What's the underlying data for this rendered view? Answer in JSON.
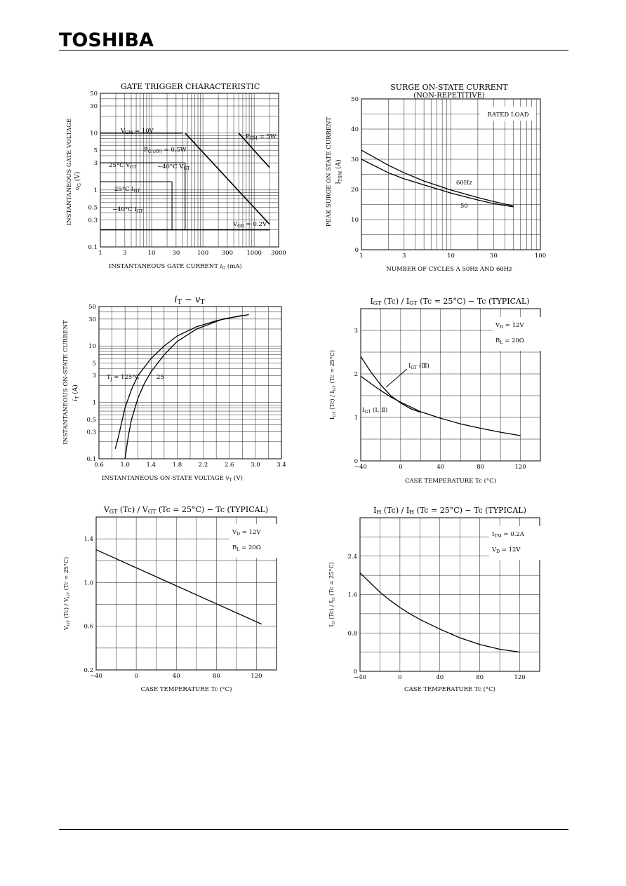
{
  "brand": "TOSHIBA",
  "chart_data": [
    {
      "id": "gate-trigger",
      "type": "line",
      "title": "GATE TRIGGER CHARACTERISTIC",
      "xlabel": "INSTANTANEOUS GATE CURRENT",
      "xsymbol": "i",
      "xsub": "G",
      "xunit": "(mA)",
      "ylabel": "INSTANTANEOUS GATE VOLTAGE",
      "ysymbol": "v",
      "ysub": "G",
      "yunit": "(V)",
      "xscale": "log",
      "yscale": "log",
      "xlim": [
        1,
        3000
      ],
      "ylim": [
        0.1,
        50
      ],
      "xticks": [
        1,
        3,
        10,
        30,
        100,
        300,
        1000,
        3000
      ],
      "xticklabels": [
        "1",
        "3",
        "10",
        "30",
        "100",
        "300",
        "1000",
        "3000"
      ],
      "yticks": [
        0.1,
        0.3,
        0.5,
        1,
        3,
        5,
        10,
        30,
        50
      ],
      "yticklabels": [
        "0.1",
        "0.3",
        "0.5",
        "1",
        "3",
        "5",
        "10",
        "30",
        "50"
      ],
      "series": [
        {
          "label": "VGM=10V",
          "x": [
            1,
            40
          ],
          "y": [
            10,
            10
          ]
        },
        {
          "label": "PGM=5W",
          "x": [
            500,
            1300,
            2000
          ],
          "y": [
            10,
            3.8,
            2.5
          ]
        },
        {
          "label": "PG(AV)=0.5W",
          "x": [
            45,
            2000
          ],
          "y": [
            10,
            0.25
          ]
        },
        {
          "label": "VGD=0.2V",
          "x": [
            1,
            2000
          ],
          "y": [
            0.2,
            0.2
          ]
        },
        {
          "label": "-40°C VGT",
          "x": [
            1,
            45
          ],
          "y": [
            3,
            3
          ]
        },
        {
          "label": "25°C VGT",
          "x": [
            1,
            25
          ],
          "y": [
            1.4,
            1.4
          ]
        },
        {
          "label": "25°C IGT",
          "x": [
            25,
            25
          ],
          "y": [
            0.2,
            1.4
          ]
        },
        {
          "label": "-40°C IGT",
          "x": [
            45,
            45
          ],
          "y": [
            0.2,
            3
          ]
        }
      ],
      "annotations": [
        {
          "text": "V",
          "sub": "GM",
          "after": " = 10V"
        },
        {
          "text": "P",
          "sub": "GM",
          "after": " = 5W"
        },
        {
          "text": "P",
          "sub": "G (AV)",
          "after": " = 0.5W"
        },
        {
          "text": "25°C  V",
          "sub": "GT",
          "after": ""
        },
        {
          "text": "−40°C  V",
          "sub": "GT",
          "after": ""
        },
        {
          "text": "25°C  I",
          "sub": "GT",
          "after": ""
        },
        {
          "text": "−40°C  I",
          "sub": "GT",
          "after": ""
        },
        {
          "text": "V",
          "sub": "GD",
          "after": " = 0.2V"
        }
      ]
    },
    {
      "id": "surge",
      "type": "line",
      "title": "SURGE ON-STATE CURRENT",
      "subtitle": "(NON-REPETITIVE)",
      "xlabel": "NUMBER OF CYCLES A 50Hz AND 60Hz",
      "ylabel": "PEAK SURGE ON STATE CURRENT",
      "ysymbol": "I",
      "ysub": "TSM",
      "yunit": "(A)",
      "xscale": "log",
      "xlim": [
        1,
        100
      ],
      "ylim": [
        0,
        50
      ],
      "xticks": [
        1,
        3,
        10,
        30,
        100
      ],
      "xticklabels": [
        "1",
        "3",
        "10",
        "30",
        "100"
      ],
      "yticks": [
        0,
        10,
        20,
        30,
        40,
        50
      ],
      "yticklabels": [
        "0",
        "10",
        "20",
        "30",
        "40",
        "50"
      ],
      "note": "RATED LOAD",
      "series": [
        {
          "name": "60Hz",
          "x": [
            1,
            2,
            3,
            5,
            10,
            20,
            30,
            50
          ],
          "y": [
            33,
            28,
            25.5,
            22.8,
            19.8,
            17.3,
            16,
            14.5
          ]
        },
        {
          "name": "50",
          "x": [
            1,
            2,
            3,
            5,
            10,
            20,
            30,
            50
          ],
          "y": [
            30,
            25.5,
            23.5,
            21.5,
            18.8,
            16.5,
            15.3,
            14.2
          ]
        }
      ]
    },
    {
      "id": "it-vt",
      "type": "line",
      "title": "i",
      "titlesub": "T",
      "titlemid": " − v",
      "titlesub2": "T",
      "xlabel": "INSTANTANEOUS ON-STATE VOLTAGE",
      "xsymbol": "v",
      "xsub": "T",
      "xunit": "(V)",
      "ylabel": "INSTANTANEOUS ON-STATE CURRENT",
      "ysymbol": "i",
      "ysub": "T",
      "yunit": "(A)",
      "yscale": "log",
      "xlim": [
        0.6,
        3.4
      ],
      "ylim": [
        0.1,
        50
      ],
      "xticks": [
        0.6,
        1.0,
        1.4,
        1.8,
        2.2,
        2.6,
        3.0,
        3.4
      ],
      "xticklabels": [
        "0.6",
        "1.0",
        "1.4",
        "1.8",
        "2.2",
        "2.6",
        "3.0",
        "3.4"
      ],
      "yticks": [
        0.1,
        0.3,
        0.5,
        1,
        3,
        5,
        10,
        30,
        50
      ],
      "yticklabels": [
        "0.1",
        "0.3",
        "0.5",
        "1",
        "3",
        "5",
        "10",
        "30",
        "50"
      ],
      "series": [
        {
          "name": "Tj = 125°C",
          "x": [
            0.85,
            0.9,
            0.95,
            1.0,
            1.1,
            1.2,
            1.4,
            1.6,
            1.8,
            2.1,
            2.4,
            2.8
          ],
          "y": [
            0.15,
            0.25,
            0.45,
            0.8,
            1.7,
            3.0,
            6.0,
            10,
            15,
            22,
            28,
            35
          ]
        },
        {
          "name": "25",
          "x": [
            1.0,
            1.05,
            1.1,
            1.2,
            1.3,
            1.4,
            1.6,
            1.8,
            2.1,
            2.5,
            2.9
          ],
          "y": [
            0.1,
            0.25,
            0.5,
            1.2,
            2.2,
            3.5,
            7.0,
            12,
            20,
            30,
            36
          ]
        }
      ],
      "annotations": [
        {
          "text": "T",
          "sub": "j",
          "after": " = 125°C"
        },
        {
          "text": "25",
          "sub": "",
          "after": ""
        }
      ]
    },
    {
      "id": "igt-tc",
      "type": "line",
      "title": "I",
      "titlesub": "GT",
      "titlemid": " (Tc) / I",
      "titlesub2": "GT",
      "titletail": " (Tc = 25°C)  −  Tc  (TYPICAL)",
      "xlabel": "CASE TEMPERATURE   Tc   (°C)",
      "ylabel": "I",
      "ylabelsub": "GT",
      "ylabeltail": " (Tc) / I",
      "ylabelsub2": "GT",
      "ylabelend": " (Tc = 25°C)",
      "xlim": [
        -40,
        140
      ],
      "ylim": [
        0,
        3.5
      ],
      "xticks": [
        -40,
        0,
        40,
        80,
        120
      ],
      "xticklabels": [
        "−40",
        "0",
        "40",
        "80",
        "120"
      ],
      "yticks": [
        0,
        1,
        2,
        3
      ],
      "yticklabels": [
        "0",
        "1",
        "2",
        "3"
      ],
      "conditions": [
        {
          "text": "V",
          "sub": "D",
          "after": " = 12V"
        },
        {
          "text": "R",
          "sub": "L",
          "after": " = 20Ω"
        }
      ],
      "series": [
        {
          "name": "IGT (Ⅲ)",
          "x": [
            -40,
            -30,
            -20,
            -10,
            0,
            10,
            20
          ],
          "y": [
            2.4,
            2.05,
            1.75,
            1.5,
            1.33,
            1.2,
            1.12
          ]
        },
        {
          "name": "IGT (Ⅰ, Ⅱ)",
          "x": [
            -40,
            -30,
            -20,
            -10,
            0,
            10,
            20,
            40,
            60,
            80,
            100,
            120
          ],
          "y": [
            1.95,
            1.78,
            1.62,
            1.47,
            1.35,
            1.24,
            1.13,
            0.98,
            0.85,
            0.75,
            0.66,
            0.58
          ]
        }
      ],
      "annotations": [
        {
          "text": "I",
          "sub": "GT",
          "after": " (Ⅲ)"
        },
        {
          "text": "I",
          "sub": "GT",
          "after": " (Ⅰ, Ⅱ)"
        }
      ]
    },
    {
      "id": "vgt-tc",
      "type": "line",
      "title": "V",
      "titlesub": "GT",
      "titlemid": " (Tc) / V",
      "titlesub2": "GT",
      "titletail": " (Tc = 25°C)  −  Tc (TYPICAL)",
      "xlabel": "CASE TEMPERATURE   Tc   (°C)",
      "ylabel": "V",
      "ylabelsub": "GT",
      "ylabeltail": " (Tc) / V",
      "ylabelsub2": "GT",
      "ylabelend": " (Tc = 25°C)",
      "xlim": [
        -40,
        140
      ],
      "ylim": [
        0.2,
        1.6
      ],
      "xticks": [
        -40,
        0,
        40,
        80,
        120
      ],
      "xticklabels": [
        "−40",
        "0",
        "40",
        "80",
        "120"
      ],
      "yticks": [
        0.2,
        0.6,
        1.0,
        1.4
      ],
      "yticklabels": [
        "0.2",
        "0.6",
        "1.0",
        "1.4"
      ],
      "conditions": [
        {
          "text": "V",
          "sub": "D",
          "after": " = 12V"
        },
        {
          "text": "R",
          "sub": "L",
          "after": " = 20Ω"
        }
      ],
      "series": [
        {
          "x": [
            -40,
            125
          ],
          "y": [
            1.3,
            0.62
          ]
        }
      ]
    },
    {
      "id": "ih-tc",
      "type": "line",
      "title": "I",
      "titlesub": "H",
      "titlemid": " (Tc) / I",
      "titlesub2": "H",
      "titletail": " (Tc = 25°C)  −  Tc     (TYPICAL)",
      "xlabel": "CASE TEMPERATURE   Tc   (°C)",
      "ylabel": "I",
      "ylabelsub": "H",
      "ylabeltail": " (Tc) / I",
      "ylabelsub2": "H",
      "ylabelend": " (Tc = 25°C)",
      "xlim": [
        -40,
        140
      ],
      "ylim": [
        0,
        3.2
      ],
      "xticks": [
        -40,
        0,
        40,
        80,
        120
      ],
      "xticklabels": [
        "−40",
        "0",
        "40",
        "80",
        "120"
      ],
      "yticks": [
        0,
        0.8,
        1.6,
        2.4
      ],
      "yticklabels": [
        "0",
        "0.8",
        "1.6",
        "2.4"
      ],
      "conditions": [
        {
          "text": "I",
          "sub": "TM",
          "after": " = 0.2A"
        },
        {
          "text": "V",
          "sub": "D",
          "after": " = 12V"
        }
      ],
      "series": [
        {
          "x": [
            -40,
            -30,
            -20,
            -10,
            0,
            10,
            20,
            30,
            40,
            60,
            80,
            100,
            120
          ],
          "y": [
            2.05,
            1.85,
            1.65,
            1.48,
            1.33,
            1.2,
            1.08,
            0.98,
            0.88,
            0.7,
            0.56,
            0.46,
            0.4
          ]
        }
      ]
    }
  ]
}
